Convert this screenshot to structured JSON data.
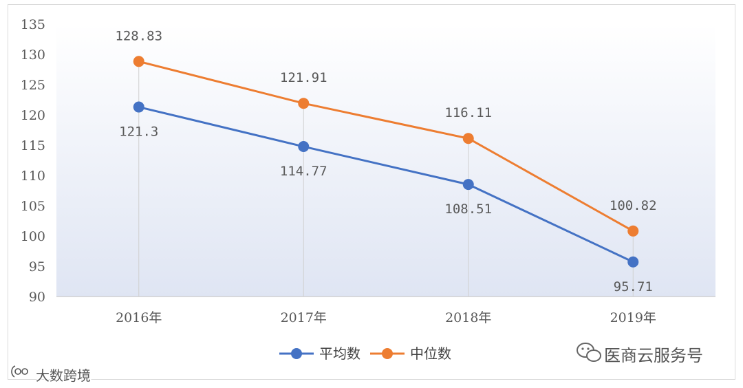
{
  "chart_data": {
    "type": "line",
    "categories": [
      "2016年",
      "2017年",
      "2018年",
      "2019年"
    ],
    "series": [
      {
        "name": "平均数",
        "values": [
          121.3,
          114.77,
          108.51,
          95.71
        ],
        "labels": [
          "121.3",
          "114.77",
          "108.51",
          "95.71"
        ],
        "color": "#4472c4"
      },
      {
        "name": "中位数",
        "values": [
          128.83,
          121.91,
          116.11,
          100.82
        ],
        "labels": [
          "128.83",
          "121.91",
          "116.11",
          "100.82"
        ],
        "color": "#ed7d31"
      }
    ],
    "ylim": [
      90,
      135
    ],
    "yticks": [
      "90",
      "95",
      "100",
      "105",
      "110",
      "115",
      "120",
      "125",
      "130",
      "135"
    ],
    "title": "",
    "xlabel": "",
    "ylabel": "",
    "grid": "vertical drop lines at categories",
    "legend": "bottom-center",
    "background_gradient": [
      "#ffffff",
      "#dfe5f3"
    ]
  },
  "watermarks": {
    "right": "医商云服务号",
    "left": "大数跨境"
  },
  "colors": {
    "axis": "#bfbfbf",
    "dropline": "#d0d0d0",
    "text": "#595959"
  }
}
